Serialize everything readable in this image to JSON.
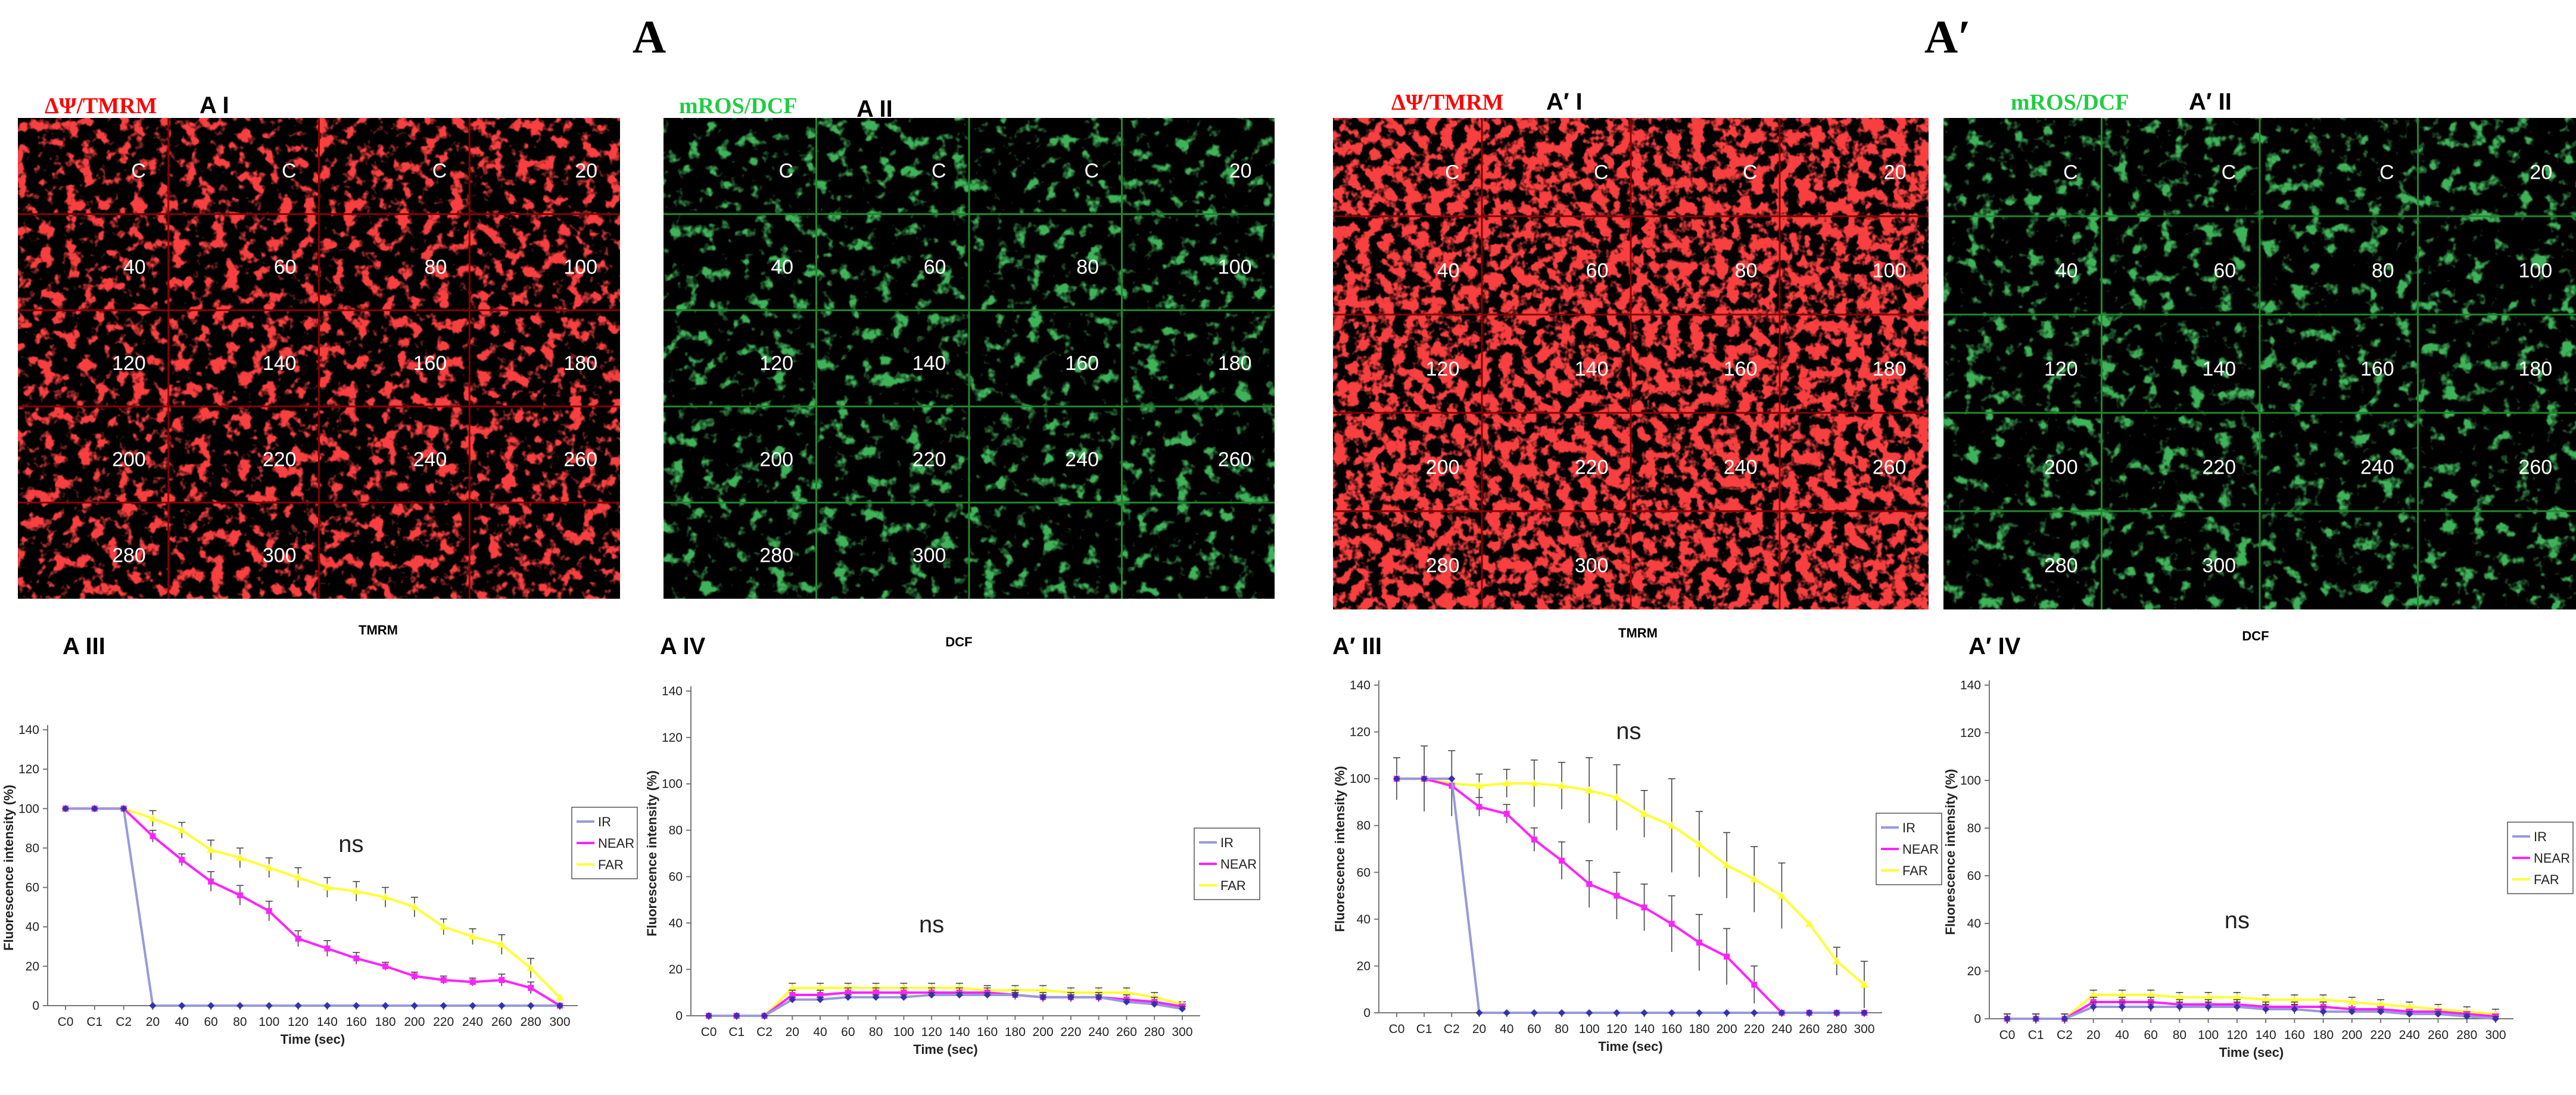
{
  "panel_letters": {
    "left": "A",
    "right": "A′"
  },
  "image_panels": [
    {
      "id": "A-I",
      "dye": "ΔΨ/TMRM",
      "sub": "A I",
      "channel": "red",
      "labels": [
        "C",
        "C",
        "C",
        "20",
        "40",
        "60",
        "80",
        "100",
        "120",
        "140",
        "160",
        "180",
        "200",
        "220",
        "240",
        "260",
        "280",
        "300",
        "",
        ""
      ]
    },
    {
      "id": "A-II",
      "dye": "mROS/DCF",
      "sub": "A II",
      "channel": "green",
      "labels": [
        "C",
        "C",
        "C",
        "20",
        "40",
        "60",
        "80",
        "100",
        "120",
        "140",
        "160",
        "180",
        "200",
        "220",
        "240",
        "260",
        "280",
        "300",
        "",
        ""
      ]
    },
    {
      "id": "A-prime-I",
      "dye": "ΔΨ/TMRM",
      "sub": "A′ I",
      "channel": "red",
      "labels": [
        "C",
        "C",
        "C",
        "20",
        "40",
        "60",
        "80",
        "100",
        "120",
        "140",
        "160",
        "180",
        "200",
        "220",
        "240",
        "260",
        "280",
        "300",
        "",
        ""
      ]
    },
    {
      "id": "A-prime-II",
      "dye": "mROS/DCF",
      "sub": "A′ II",
      "channel": "green",
      "labels": [
        "C",
        "C",
        "C",
        "20",
        "40",
        "60",
        "80",
        "100",
        "120",
        "140",
        "160",
        "180",
        "200",
        "220",
        "240",
        "260",
        "280",
        "300",
        "",
        ""
      ]
    }
  ],
  "colors": {
    "IR": "#3333aa",
    "NEAR": "#ff22ff",
    "FAR": "#ffff33",
    "IR_line": "#9999dd",
    "tmrm_label": "#ff0000",
    "dcf_label": "#22cc44"
  },
  "chart_data": [
    {
      "id": "A-III",
      "sub_label": "A III",
      "type": "line",
      "title": "TMRM",
      "xlabel": "Time (sec)",
      "ylabel": "Fluorescence intensity (%)",
      "ylim": [
        0,
        140
      ],
      "yticks": [
        "0",
        "20",
        "40",
        "60",
        "80",
        "100",
        "120",
        "140"
      ],
      "categories": [
        "C0",
        "C1",
        "C2",
        "20",
        "40",
        "60",
        "80",
        "100",
        "120",
        "140",
        "160",
        "180",
        "200",
        "220",
        "240",
        "260",
        "280",
        "300"
      ],
      "annotation": "ns",
      "series": [
        {
          "name": "IR",
          "values": [
            100,
            100,
            100,
            0,
            0,
            0,
            0,
            0,
            0,
            0,
            0,
            0,
            0,
            0,
            0,
            0,
            0,
            0
          ],
          "errors": [
            0,
            0,
            0,
            0,
            0,
            0,
            0,
            0,
            0,
            0,
            0,
            0,
            0,
            0,
            0,
            0,
            0,
            0
          ]
        },
        {
          "name": "NEAR",
          "values": [
            100,
            100,
            100,
            86,
            74,
            63,
            56,
            48,
            34,
            29,
            24,
            20,
            15,
            13,
            12,
            13,
            9,
            0
          ],
          "errors": [
            0,
            0,
            0,
            3,
            3,
            5,
            5,
            5,
            4,
            4,
            3,
            2,
            2,
            2,
            2,
            3,
            3,
            0
          ]
        },
        {
          "name": "FAR",
          "values": [
            100,
            100,
            100,
            95,
            89,
            79,
            75,
            70,
            65,
            60,
            58,
            55,
            50,
            40,
            35,
            31,
            19,
            4
          ],
          "errors": [
            0,
            0,
            0,
            4,
            4,
            5,
            5,
            5,
            5,
            5,
            5,
            5,
            5,
            4,
            4,
            5,
            5,
            0
          ]
        }
      ]
    },
    {
      "id": "A-IV",
      "sub_label": "A IV",
      "type": "line",
      "title": "DCF",
      "xlabel": "Time (sec)",
      "ylabel": "Fluorescence intensity (%)",
      "ylim": [
        0,
        140
      ],
      "yticks": [
        "0",
        "20",
        "40",
        "60",
        "80",
        "100",
        "120",
        "140"
      ],
      "categories": [
        "C0",
        "C1",
        "C2",
        "20",
        "40",
        "60",
        "80",
        "100",
        "120",
        "140",
        "160",
        "180",
        "200",
        "220",
        "240",
        "260",
        "280",
        "300"
      ],
      "annotation": "ns",
      "series": [
        {
          "name": "IR",
          "values": [
            0,
            0,
            0,
            7,
            7,
            8,
            8,
            8,
            9,
            9,
            9,
            9,
            8,
            8,
            8,
            6,
            5,
            3
          ],
          "errors": [
            0,
            0,
            0,
            1,
            1,
            1,
            1,
            1,
            1,
            1,
            1,
            1,
            1,
            1,
            1,
            1,
            1,
            1
          ]
        },
        {
          "name": "NEAR",
          "values": [
            0,
            0,
            0,
            9,
            9,
            10,
            10,
            10,
            10,
            10,
            10,
            9,
            8,
            8,
            8,
            7,
            6,
            4
          ],
          "errors": [
            0,
            0,
            0,
            2,
            2,
            2,
            2,
            2,
            2,
            2,
            2,
            2,
            2,
            2,
            2,
            2,
            2,
            1
          ]
        },
        {
          "name": "FAR",
          "values": [
            0,
            0,
            0,
            12,
            12,
            12,
            12,
            12,
            12,
            12,
            11,
            11,
            11,
            10,
            10,
            10,
            8,
            5
          ],
          "errors": [
            0,
            0,
            0,
            2,
            2,
            2,
            2,
            2,
            2,
            2,
            2,
            2,
            2,
            2,
            2,
            2,
            2,
            1
          ]
        }
      ]
    },
    {
      "id": "A-prime-III",
      "sub_label": "A′ III",
      "type": "line",
      "title": "TMRM",
      "xlabel": "Time (sec)",
      "ylabel": "Fluorescence intensity (%)",
      "ylim": [
        0,
        140
      ],
      "yticks": [
        "0",
        "20",
        "40",
        "60",
        "80",
        "100",
        "120",
        "140"
      ],
      "categories": [
        "C0",
        "C1",
        "C2",
        "20",
        "40",
        "60",
        "80",
        "100",
        "120",
        "140",
        "160",
        "180",
        "200",
        "220",
        "240",
        "260",
        "280",
        "300"
      ],
      "annotation": "ns",
      "series": [
        {
          "name": "IR",
          "values": [
            100,
            100,
            100,
            0,
            0,
            0,
            0,
            0,
            0,
            0,
            0,
            0,
            0,
            0,
            0,
            0,
            0,
            0
          ],
          "errors": [
            0,
            0,
            0,
            0,
            0,
            0,
            0,
            0,
            0,
            0,
            0,
            0,
            0,
            0,
            0,
            0,
            0,
            0
          ]
        },
        {
          "name": "NEAR",
          "values": [
            100,
            100,
            97,
            88,
            85,
            74,
            65,
            55,
            50,
            45,
            38,
            30,
            24,
            12,
            0,
            0,
            0,
            0
          ],
          "errors": [
            0,
            0,
            0,
            4,
            4,
            5,
            8,
            10,
            10,
            10,
            12,
            12,
            12,
            8,
            0,
            0,
            0,
            0
          ]
        },
        {
          "name": "FAR",
          "values": [
            100,
            100,
            98,
            97,
            98,
            98,
            97,
            95,
            92,
            85,
            80,
            72,
            63,
            57,
            50,
            38,
            22,
            12
          ],
          "errors": [
            9,
            14,
            14,
            5,
            6,
            10,
            10,
            14,
            14,
            10,
            20,
            14,
            14,
            14,
            14,
            0,
            6,
            10
          ]
        }
      ]
    },
    {
      "id": "A-prime-IV",
      "sub_label": "A′ IV",
      "type": "line",
      "title": "DCF",
      "xlabel": "Time (sec)",
      "ylabel": "Fluorescence intensity (%)",
      "ylim": [
        0,
        140
      ],
      "yticks": [
        "0",
        "20",
        "40",
        "60",
        "80",
        "100",
        "120",
        "140"
      ],
      "categories": [
        "C0",
        "C1",
        "C2",
        "20",
        "40",
        "60",
        "80",
        "100",
        "120",
        "140",
        "160",
        "180",
        "200",
        "220",
        "240",
        "260",
        "280",
        "300"
      ],
      "annotation": "ns",
      "series": [
        {
          "name": "IR",
          "values": [
            0,
            0,
            0,
            5,
            5,
            5,
            5,
            5,
            5,
            4,
            4,
            3,
            3,
            3,
            2,
            2,
            1,
            0
          ],
          "errors": [
            2,
            2,
            2,
            2,
            2,
            2,
            2,
            2,
            2,
            2,
            2,
            2,
            1,
            1,
            1,
            1,
            1,
            1
          ]
        },
        {
          "name": "NEAR",
          "values": [
            0,
            0,
            0,
            7,
            7,
            7,
            6,
            6,
            6,
            5,
            5,
            5,
            4,
            4,
            3,
            3,
            2,
            1
          ],
          "errors": [
            2,
            2,
            2,
            2,
            2,
            2,
            2,
            2,
            2,
            2,
            2,
            2,
            1,
            1,
            1,
            1,
            1,
            1
          ]
        },
        {
          "name": "FAR",
          "values": [
            0,
            0,
            0,
            10,
            10,
            10,
            9,
            9,
            9,
            8,
            8,
            8,
            7,
            6,
            5,
            4,
            3,
            2
          ],
          "errors": [
            2,
            2,
            2,
            2,
            2,
            2,
            2,
            2,
            2,
            2,
            2,
            2,
            2,
            2,
            2,
            2,
            2,
            2
          ]
        }
      ]
    }
  ]
}
